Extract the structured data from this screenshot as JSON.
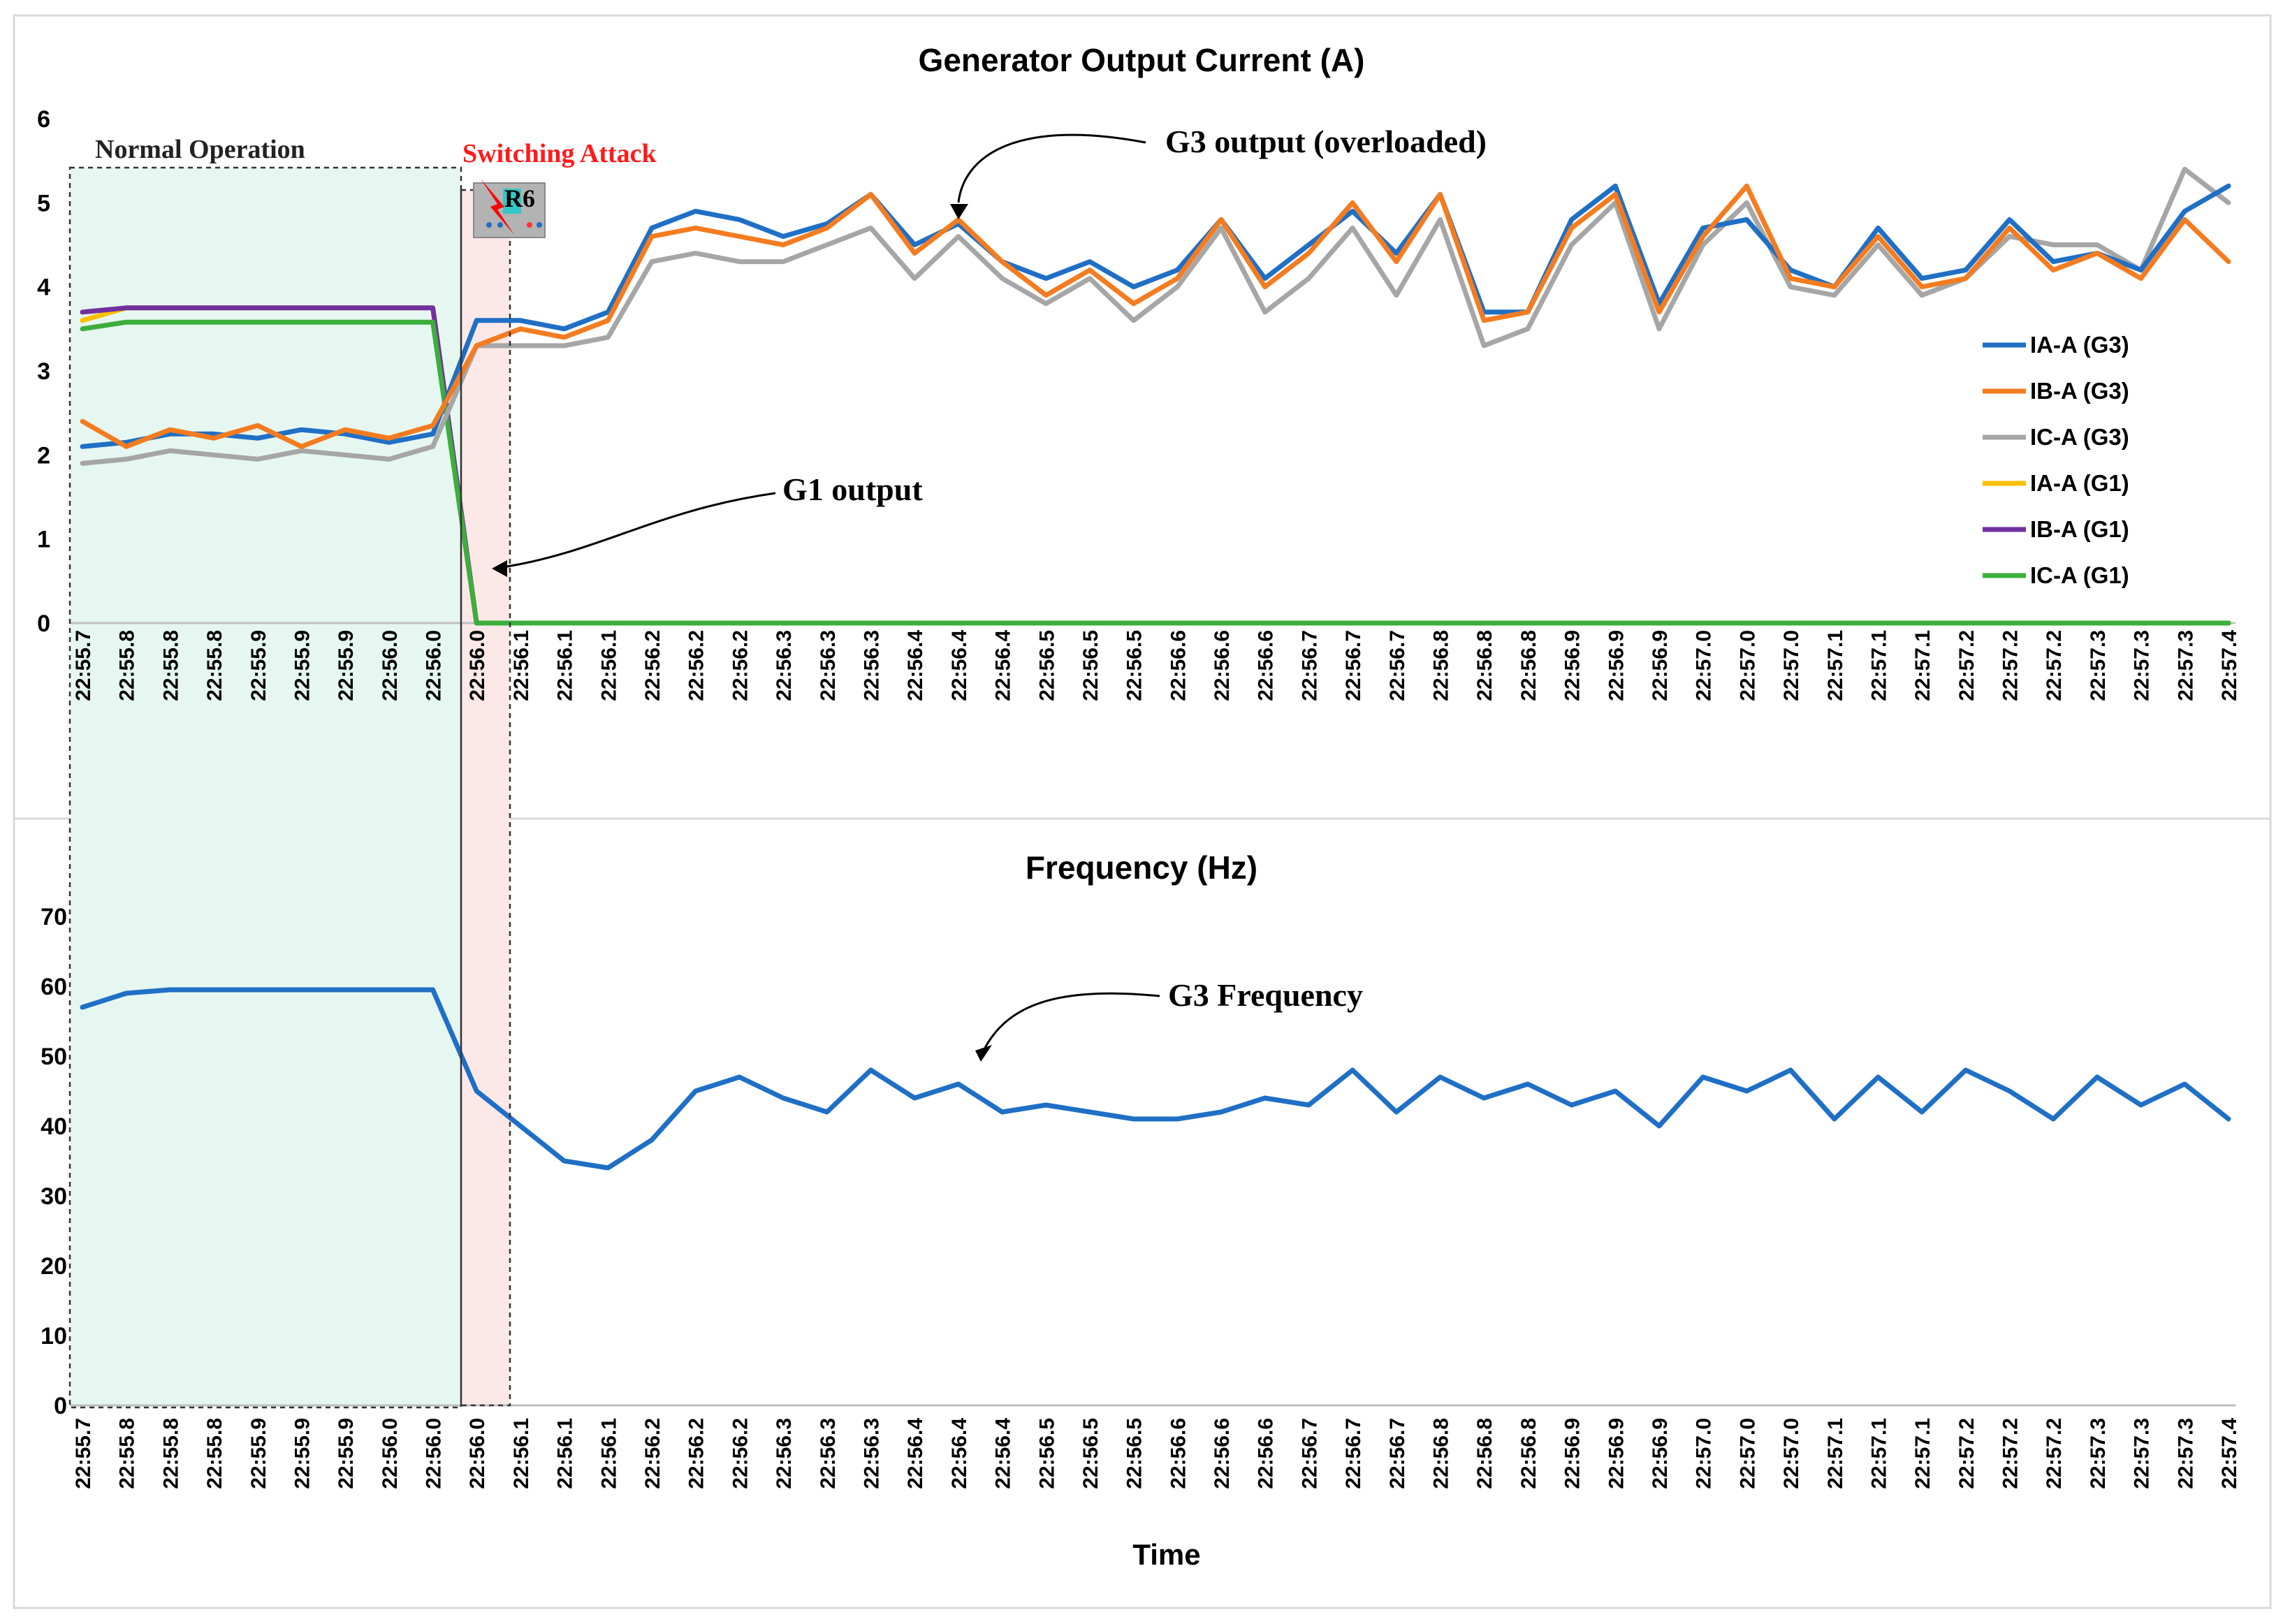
{
  "chart_data": [
    {
      "type": "line",
      "title": "Generator Output Current (A)",
      "ylabel": "",
      "xlabel": "",
      "ylim": [
        0,
        6
      ],
      "yticks": [
        "0",
        "1",
        "2",
        "3",
        "4",
        "5",
        "6"
      ],
      "legend": "right",
      "categories": [
        "22:55.7",
        "22:55.8",
        "22:55.8",
        "22:55.8",
        "22:55.9",
        "22:55.9",
        "22:55.9",
        "22:56.0",
        "22:56.0",
        "22:56.0",
        "22:56.1",
        "22:56.1",
        "22:56.1",
        "22:56.2",
        "22:56.2",
        "22:56.2",
        "22:56.3",
        "22:56.3",
        "22:56.3",
        "22:56.4",
        "22:56.4",
        "22:56.4",
        "22:56.5",
        "22:56.5",
        "22:56.5",
        "22:56.6",
        "22:56.6",
        "22:56.6",
        "22:56.7",
        "22:56.7",
        "22:56.7",
        "22:56.8",
        "22:56.8",
        "22:56.8",
        "22:56.9",
        "22:56.9",
        "22:56.9",
        "22:57.0",
        "22:57.0",
        "22:57.0",
        "22:57.1",
        "22:57.1",
        "22:57.1",
        "22:57.2",
        "22:57.2",
        "22:57.2",
        "22:57.3",
        "22:57.3",
        "22:57.3",
        "22:57.4"
      ],
      "series": [
        {
          "name": "IA-A (G3)",
          "color": "#1f6fc5",
          "values": [
            2.1,
            2.15,
            2.25,
            2.25,
            2.2,
            2.3,
            2.25,
            2.15,
            2.25,
            3.6,
            3.6,
            3.5,
            3.7,
            4.7,
            4.9,
            4.8,
            4.6,
            4.75,
            5.1,
            4.5,
            4.75,
            4.3,
            4.1,
            4.3,
            4.0,
            4.2,
            4.8,
            4.1,
            4.5,
            4.9,
            4.4,
            5.1,
            3.7,
            3.7,
            4.8,
            5.2,
            3.8,
            4.7,
            4.8,
            4.2,
            4.0,
            4.7,
            4.1,
            4.2,
            4.8,
            4.3,
            4.4,
            4.2,
            4.9,
            5.2
          ]
        },
        {
          "name": "IB-A (G3)",
          "color": "#f47c20",
          "values": [
            2.4,
            2.1,
            2.3,
            2.2,
            2.35,
            2.1,
            2.3,
            2.2,
            2.35,
            3.3,
            3.5,
            3.4,
            3.6,
            4.6,
            4.7,
            4.6,
            4.5,
            4.7,
            5.1,
            4.4,
            4.8,
            4.3,
            3.9,
            4.2,
            3.8,
            4.1,
            4.8,
            4.0,
            4.4,
            5.0,
            4.3,
            5.1,
            3.6,
            3.7,
            4.7,
            5.1,
            3.7,
            4.6,
            5.2,
            4.1,
            4.0,
            4.6,
            4.0,
            4.1,
            4.7,
            4.2,
            4.4,
            4.1,
            4.8,
            4.3
          ]
        },
        {
          "name": "IC-A (G3)",
          "color": "#a6a6a6",
          "values": [
            1.9,
            1.95,
            2.05,
            2.0,
            1.95,
            2.05,
            2.0,
            1.95,
            2.1,
            3.3,
            3.3,
            3.3,
            3.4,
            4.3,
            4.4,
            4.3,
            4.3,
            4.5,
            4.7,
            4.1,
            4.6,
            4.1,
            3.8,
            4.1,
            3.6,
            4.0,
            4.7,
            3.7,
            4.1,
            4.7,
            3.9,
            4.8,
            3.3,
            3.5,
            4.5,
            5.0,
            3.5,
            4.5,
            5.0,
            4.0,
            3.9,
            4.5,
            3.9,
            4.1,
            4.6,
            4.5,
            4.5,
            4.2,
            5.4,
            5.0
          ]
        },
        {
          "name": "IA-A (G1)",
          "color": "#ffc000",
          "values": [
            3.6,
            3.75,
            3.75,
            3.75,
            3.75,
            3.75,
            3.75,
            3.75,
            3.75,
            0,
            0,
            0,
            0,
            0,
            0,
            0,
            0,
            0,
            0,
            0,
            0,
            0,
            0,
            0,
            0,
            0,
            0,
            0,
            0,
            0,
            0,
            0,
            0,
            0,
            0,
            0,
            0,
            0,
            0,
            0,
            0,
            0,
            0,
            0,
            0,
            0,
            0,
            0,
            0,
            0
          ]
        },
        {
          "name": "IB-A (G1)",
          "color": "#7030a0",
          "values": [
            3.7,
            3.75,
            3.75,
            3.75,
            3.75,
            3.75,
            3.75,
            3.75,
            3.75,
            0,
            0,
            0,
            0,
            0,
            0,
            0,
            0,
            0,
            0,
            0,
            0,
            0,
            0,
            0,
            0,
            0,
            0,
            0,
            0,
            0,
            0,
            0,
            0,
            0,
            0,
            0,
            0,
            0,
            0,
            0,
            0,
            0,
            0,
            0,
            0,
            0,
            0,
            0,
            0,
            0
          ]
        },
        {
          "name": "IC-A (G1)",
          "color": "#3cae3c",
          "values": [
            3.5,
            3.58,
            3.58,
            3.58,
            3.58,
            3.58,
            3.58,
            3.58,
            3.58,
            0,
            0,
            0,
            0,
            0,
            0,
            0,
            0,
            0,
            0,
            0,
            0,
            0,
            0,
            0,
            0,
            0,
            0,
            0,
            0,
            0,
            0,
            0,
            0,
            0,
            0,
            0,
            0,
            0,
            0,
            0,
            0,
            0,
            0,
            0,
            0,
            0,
            0,
            0,
            0,
            0
          ]
        }
      ],
      "annotations": [
        "Normal Operation",
        "Switching Attack",
        "R6",
        "G3 output (overloaded)",
        "G1 output"
      ]
    },
    {
      "type": "line",
      "title": "Frequency (Hz)",
      "ylabel": "",
      "xlabel": "Time",
      "ylim": [
        0,
        70
      ],
      "yticks": [
        "0",
        "10",
        "20",
        "30",
        "40",
        "50",
        "60",
        "70"
      ],
      "categories": [
        "22:55.7",
        "22:55.8",
        "22:55.8",
        "22:55.8",
        "22:55.9",
        "22:55.9",
        "22:55.9",
        "22:56.0",
        "22:56.0",
        "22:56.0",
        "22:56.1",
        "22:56.1",
        "22:56.1",
        "22:56.2",
        "22:56.2",
        "22:56.2",
        "22:56.3",
        "22:56.3",
        "22:56.3",
        "22:56.4",
        "22:56.4",
        "22:56.4",
        "22:56.5",
        "22:56.5",
        "22:56.5",
        "22:56.6",
        "22:56.6",
        "22:56.6",
        "22:56.7",
        "22:56.7",
        "22:56.7",
        "22:56.8",
        "22:56.8",
        "22:56.8",
        "22:56.9",
        "22:56.9",
        "22:56.9",
        "22:57.0",
        "22:57.0",
        "22:57.0",
        "22:57.1",
        "22:57.1",
        "22:57.1",
        "22:57.2",
        "22:57.2",
        "22:57.2",
        "22:57.3",
        "22:57.3",
        "22:57.3",
        "22:57.4"
      ],
      "series": [
        {
          "name": "G3 Frequency",
          "color": "#1f6fc5",
          "values": [
            57,
            59,
            59.5,
            59.5,
            59.5,
            59.5,
            59.5,
            59.5,
            59.5,
            45,
            40,
            35,
            34,
            38,
            45,
            47,
            44,
            42,
            48,
            44,
            46,
            42,
            43,
            42,
            41,
            41,
            42,
            44,
            43,
            48,
            42,
            47,
            44,
            46,
            43,
            45,
            40,
            47,
            45,
            48,
            41,
            47,
            42,
            48,
            45,
            41,
            47,
            43,
            46,
            41
          ]
        }
      ],
      "annotations": [
        "G3 Frequency"
      ]
    }
  ],
  "labels": {
    "normal_operation": "Normal Operation",
    "switching_attack": "Switching Attack",
    "relay": "R6",
    "g3_output": "G3 output (overloaded)",
    "g1_output": "G1 output",
    "g3_frequency": "G3 Frequency",
    "xlabel": "Time"
  }
}
